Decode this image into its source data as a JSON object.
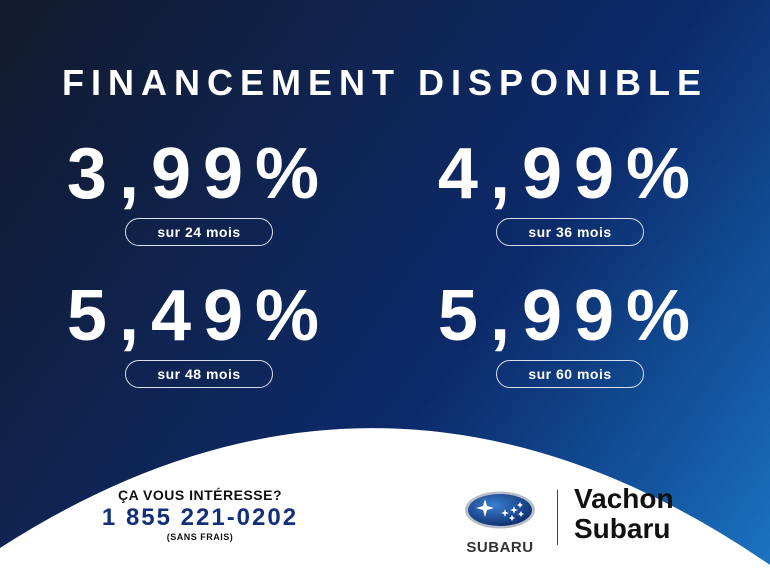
{
  "title": "FINANCEMENT DISPONIBLE",
  "rates": [
    {
      "rate": "3,99%",
      "term": "sur 24 mois"
    },
    {
      "rate": "4,99%",
      "term": "sur 36 mois"
    },
    {
      "rate": "5,49%",
      "term": "sur 48 mois"
    },
    {
      "rate": "5,99%",
      "term": "sur 60 mois"
    }
  ],
  "cta": {
    "question": "ÇA VOUS INTÉRESSE?",
    "phone": "1 855 221-0202",
    "note": "(SANS FRAIS)"
  },
  "logo": {
    "brand": "SUBARU",
    "icon": "subaru-pleiades-logo"
  },
  "dealer": {
    "line1": "Vachon",
    "line2": "Subaru"
  },
  "colors": {
    "phone": "#12307a",
    "background_dark": "#121a2c",
    "background_light": "#1c75c2"
  }
}
